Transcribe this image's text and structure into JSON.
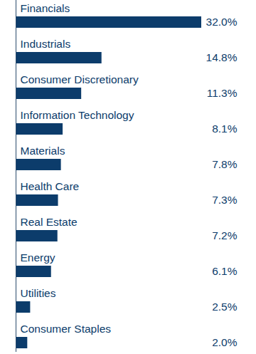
{
  "chart_data": {
    "type": "bar",
    "orientation": "horizontal",
    "categories": [
      "Financials",
      "Industrials",
      "Consumer Discretionary",
      "Information Technology",
      "Materials",
      "Health Care",
      "Real Estate",
      "Energy",
      "Utilities",
      "Consumer Staples"
    ],
    "values": [
      32.0,
      14.8,
      11.3,
      8.1,
      7.8,
      7.3,
      7.2,
      6.1,
      2.5,
      2.0
    ],
    "value_labels": [
      "32.0%",
      "14.8%",
      "11.3%",
      "8.1%",
      "7.8%",
      "7.3%",
      "7.2%",
      "6.1%",
      "2.5%",
      "2.0%"
    ],
    "color": "#0c3c6b",
    "xlim": [
      0,
      32
    ],
    "data_labels": true,
    "tick_labels": false,
    "grid": false
  }
}
